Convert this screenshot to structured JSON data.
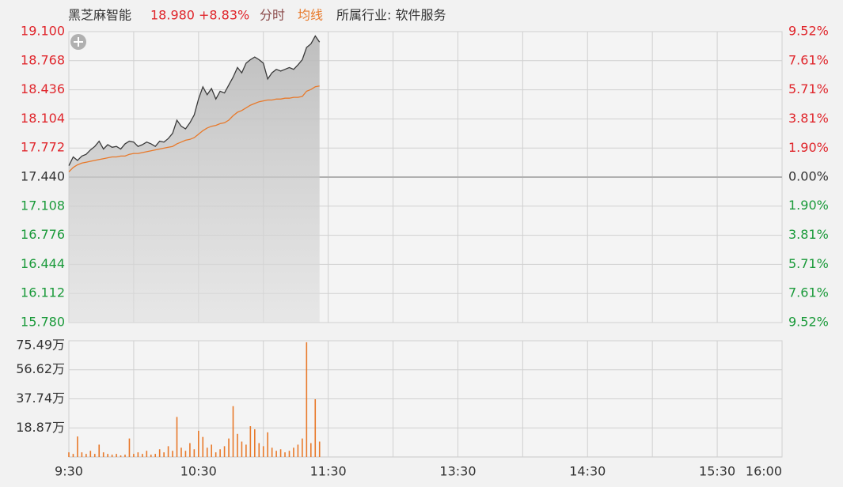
{
  "header": {
    "name": "黑芝麻智能",
    "price": "18.980",
    "change": "+8.83%",
    "industry": "所属行业: 软件服务"
  },
  "chart_data": [
    {
      "type": "line",
      "up_color": "#e0262c",
      "down_color": "#1a9a3a",
      "grid": true,
      "x": [
        0,
        2,
        4,
        6,
        8,
        10,
        12,
        14,
        16,
        18,
        20,
        22,
        24,
        26,
        28,
        30,
        32,
        34,
        36,
        38,
        40,
        42,
        44,
        46,
        48,
        50,
        52,
        54,
        56,
        58,
        60,
        62,
        64,
        66,
        68,
        70,
        72,
        74,
        76,
        78,
        80,
        82,
        84,
        86,
        88,
        90,
        92,
        94,
        96,
        98,
        100,
        102,
        104,
        106,
        108,
        110,
        112,
        114,
        116
      ],
      "xlim": [
        0,
        330
      ],
      "ylim": [
        15.78,
        19.1
      ],
      "yticks": [
        {
          "value": 19.1,
          "label": "19.100"
        },
        {
          "value": 18.768,
          "label": "18.768"
        },
        {
          "value": 18.436,
          "label": "18.436"
        },
        {
          "value": 18.104,
          "label": "18.104"
        },
        {
          "value": 17.772,
          "label": "17.772"
        },
        {
          "value": 17.44,
          "label": "17.440"
        },
        {
          "value": 17.108,
          "label": "17.108"
        },
        {
          "value": 16.776,
          "label": "16.776"
        },
        {
          "value": 16.444,
          "label": "16.444"
        },
        {
          "value": 16.112,
          "label": "16.112"
        },
        {
          "value": 15.78,
          "label": "15.780"
        }
      ],
      "y2lim": [
        -9.52,
        9.52
      ],
      "y2ticks": [
        {
          "value": 9.52,
          "label": "9.52%"
        },
        {
          "value": 7.61,
          "label": "7.61%"
        },
        {
          "value": 5.71,
          "label": "5.71%"
        },
        {
          "value": 3.81,
          "label": "3.81%"
        },
        {
          "value": 1.9,
          "label": "1.90%"
        },
        {
          "value": 0,
          "label": "0.00%"
        },
        {
          "value": -1.9,
          "label": "1.90%"
        },
        {
          "value": -3.81,
          "label": "3.81%"
        },
        {
          "value": -5.71,
          "label": "5.71%"
        },
        {
          "value": -7.61,
          "label": "7.61%"
        },
        {
          "value": -9.52,
          "label": "9.52%"
        }
      ],
      "series": [
        {
          "name": "分时",
          "color": "#3a3a3a",
          "values": [
            17.57,
            17.67,
            17.63,
            17.68,
            17.7,
            17.75,
            17.79,
            17.85,
            17.76,
            17.81,
            17.78,
            17.79,
            17.76,
            17.82,
            17.85,
            17.84,
            17.79,
            17.81,
            17.84,
            17.82,
            17.79,
            17.85,
            17.84,
            17.88,
            17.94,
            18.09,
            18.02,
            17.99,
            18.06,
            18.15,
            18.33,
            18.47,
            18.38,
            18.45,
            18.33,
            18.42,
            18.4,
            18.49,
            18.58,
            18.69,
            18.63,
            18.74,
            18.78,
            18.81,
            18.78,
            18.74,
            18.56,
            18.63,
            18.67,
            18.65,
            18.67,
            18.69,
            18.67,
            18.72,
            18.78,
            18.92,
            18.96,
            19.05,
            18.98
          ]
        },
        {
          "name": "均线",
          "color": "#e8792a",
          "values": [
            17.5,
            17.55,
            17.58,
            17.6,
            17.61,
            17.62,
            17.63,
            17.64,
            17.65,
            17.66,
            17.67,
            17.67,
            17.68,
            17.68,
            17.7,
            17.71,
            17.71,
            17.72,
            17.73,
            17.74,
            17.75,
            17.76,
            17.77,
            17.78,
            17.79,
            17.82,
            17.84,
            17.86,
            17.87,
            17.89,
            17.93,
            17.97,
            18.0,
            18.02,
            18.03,
            18.05,
            18.06,
            18.09,
            18.14,
            18.18,
            18.2,
            18.23,
            18.26,
            18.28,
            18.3,
            18.31,
            18.32,
            18.32,
            18.33,
            18.33,
            18.34,
            18.34,
            18.35,
            18.35,
            18.36,
            18.42,
            18.44,
            18.47,
            18.48
          ]
        }
      ]
    },
    {
      "type": "bar",
      "color": "#e8792a",
      "grid": true,
      "x": [
        0,
        2,
        4,
        6,
        8,
        10,
        12,
        14,
        16,
        18,
        20,
        22,
        24,
        26,
        28,
        30,
        32,
        34,
        36,
        38,
        40,
        42,
        44,
        46,
        48,
        50,
        52,
        54,
        56,
        58,
        60,
        62,
        64,
        66,
        68,
        70,
        72,
        74,
        76,
        78,
        80,
        82,
        84,
        86,
        88,
        90,
        92,
        94,
        96,
        98,
        100,
        102,
        104,
        106,
        108,
        110,
        112,
        114,
        116
      ],
      "values": [
        3,
        2,
        13.3,
        3,
        2,
        4,
        2,
        8,
        3,
        2,
        1.5,
        2,
        1,
        1.5,
        12,
        2,
        3,
        2,
        4,
        1.5,
        2,
        5,
        3,
        7,
        4,
        26,
        6,
        4,
        9,
        5,
        17,
        13,
        6,
        8,
        3,
        5,
        7,
        12,
        33,
        15,
        10,
        8,
        20,
        18,
        9,
        7,
        16,
        6,
        4,
        5,
        3,
        4,
        6,
        8,
        12,
        74.5,
        9,
        37.5,
        10
      ],
      "xlim": [
        0,
        330
      ],
      "xticks": [
        {
          "value": 0,
          "label": "9:30"
        },
        {
          "value": 60,
          "label": "10:30"
        },
        {
          "value": 120,
          "label": "11:30"
        },
        {
          "value": 180,
          "label": "13:30"
        },
        {
          "value": 240,
          "label": "14:30"
        },
        {
          "value": 300,
          "label": "15:30"
        },
        {
          "value": 330,
          "label": "16:00"
        }
      ],
      "xgrid": [
        0,
        30,
        60,
        90,
        120,
        150,
        180,
        210,
        240,
        270,
        300,
        330
      ],
      "ylim": [
        0,
        75.49
      ],
      "yticks": [
        {
          "value": 18.87,
          "label": "18.87万"
        },
        {
          "value": 37.74,
          "label": "37.74万"
        },
        {
          "value": 56.62,
          "label": "56.62万"
        },
        {
          "value": 75.49,
          "label": "75.49万"
        }
      ]
    }
  ]
}
